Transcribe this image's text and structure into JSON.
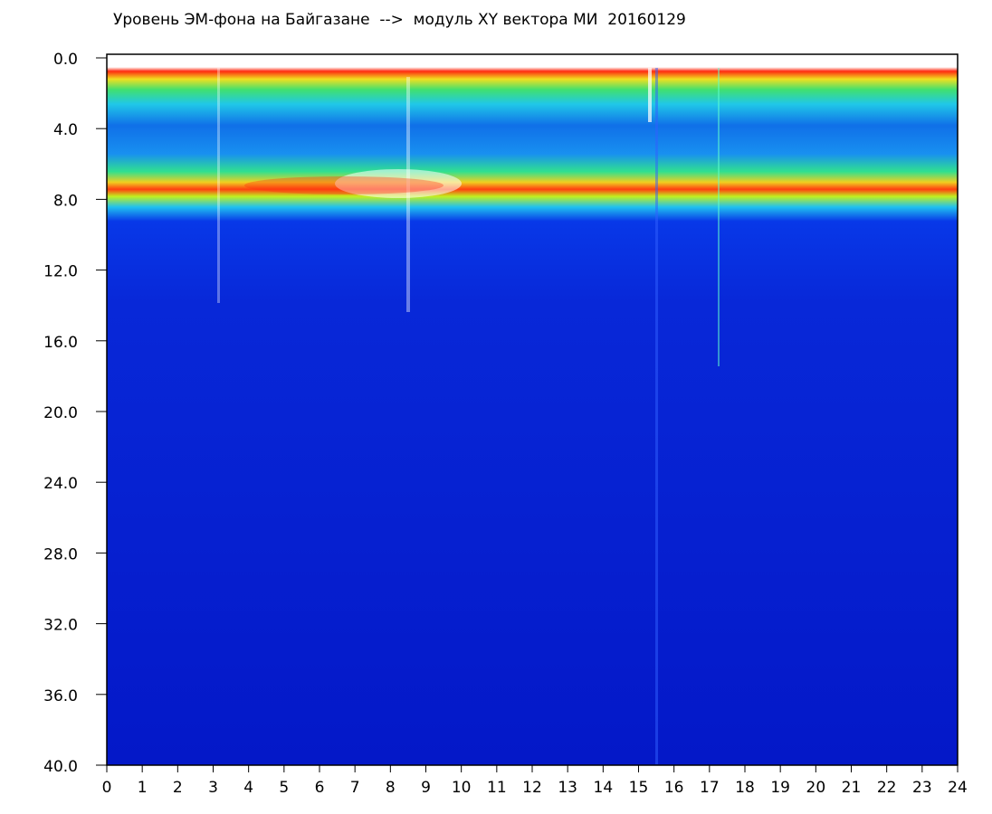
{
  "chart_data": {
    "type": "spectrogram",
    "title": "Уровень ЭМ-фона на Байгазане  -->  модуль XY вектора МИ  20160129",
    "xlim": [
      0,
      24
    ],
    "xticks": [
      0,
      1,
      2,
      3,
      4,
      5,
      6,
      7,
      8,
      9,
      10,
      11,
      12,
      13,
      14,
      15,
      16,
      17,
      18,
      19,
      20,
      21,
      22,
      23,
      24
    ],
    "ylim": [
      0,
      40
    ],
    "yticks": [
      {
        "value": 0,
        "label": "0.0"
      },
      {
        "value": 4,
        "label": "4.0"
      },
      {
        "value": 8,
        "label": "8.0"
      },
      {
        "value": 12,
        "label": "12.0"
      },
      {
        "value": 16,
        "label": "16.0"
      },
      {
        "value": 20,
        "label": "20.0"
      },
      {
        "value": 24,
        "label": "24.0"
      },
      {
        "value": 28,
        "label": "28.0"
      },
      {
        "value": 32,
        "label": "32.0"
      },
      {
        "value": 36,
        "label": "36.0"
      },
      {
        "value": 40,
        "label": "40.0"
      }
    ],
    "y_inverted": true
  }
}
